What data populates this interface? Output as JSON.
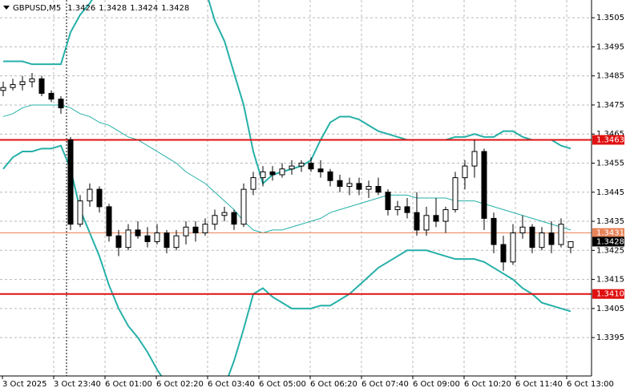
{
  "chart_data": {
    "type": "candlestick",
    "title": "GBPUSD,M5",
    "ylim": [
      1.33818,
      1.35111
    ],
    "yticks": [
      1.3395,
      1.3405,
      1.3415,
      1.3425,
      1.3435,
      1.3445,
      1.3455,
      1.3465,
      1.3475,
      1.3485,
      1.3495,
      1.3505
    ],
    "grid": true,
    "x_tick_labels": [
      "3 Oct 2025",
      "3 Oct 23:40",
      "6 Oct 01:00",
      "6 Oct 02:20",
      "6 Oct 03:40",
      "6 Oct 05:00",
      "6 Oct 06:20",
      "6 Oct 07:40",
      "6 Oct 09:00",
      "6 Oct 10:20",
      "6 Oct 11:40",
      "6 Oct 13:00"
    ],
    "candle_color": "#000000",
    "open": [
      1.348,
      1.3481,
      1.3482,
      1.3483,
      1.3484,
      1.3479,
      1.3477,
      1.3463,
      1.3434,
      1.3442,
      1.3446,
      1.344,
      1.343,
      1.3426,
      1.3432,
      1.343,
      1.3428,
      1.3431,
      1.3426,
      1.343,
      1.3433,
      1.3431,
      1.3434,
      1.3437,
      1.3438,
      1.3434,
      1.3446,
      1.345,
      1.3452,
      1.3451,
      1.3453,
      1.3454,
      1.3455,
      1.3453,
      1.3452,
      1.3449,
      1.3447,
      1.3448,
      1.3446,
      1.3447,
      1.3445,
      1.3439,
      1.344,
      1.3438,
      1.3432,
      1.3437,
      1.3435,
      1.3439,
      1.345,
      1.3454,
      1.3459,
      1.3436,
      1.3427,
      1.3421,
      1.3431,
      1.3433,
      1.3426,
      1.3431,
      1.3427,
      1.3426
    ],
    "high": [
      1.3483,
      1.3484,
      1.3485,
      1.3486,
      1.3485,
      1.348,
      1.3478,
      1.3464,
      1.3444,
      1.3448,
      1.3447,
      1.3441,
      1.3432,
      1.3434,
      1.3435,
      1.3433,
      1.3434,
      1.3432,
      1.3432,
      1.3435,
      1.3435,
      1.3436,
      1.3439,
      1.344,
      1.3439,
      1.3448,
      1.3452,
      1.3454,
      1.3454,
      1.3455,
      1.3456,
      1.3456,
      1.3457,
      1.3456,
      1.3453,
      1.3451,
      1.345,
      1.345,
      1.3449,
      1.345,
      1.3446,
      1.3442,
      1.3443,
      1.3445,
      1.344,
      1.3443,
      1.344,
      1.3452,
      1.3456,
      1.3463,
      1.346,
      1.3438,
      1.343,
      1.3434,
      1.3437,
      1.3434,
      1.3433,
      1.3435,
      1.3436,
      1.3428
    ],
    "low": [
      1.3478,
      1.348,
      1.348,
      1.3481,
      1.3478,
      1.3476,
      1.3472,
      1.3432,
      1.3433,
      1.344,
      1.3438,
      1.3428,
      1.3423,
      1.3425,
      1.3429,
      1.3426,
      1.3427,
      1.3424,
      1.3425,
      1.3427,
      1.3428,
      1.343,
      1.3432,
      1.3435,
      1.3432,
      1.3433,
      1.3444,
      1.3447,
      1.3449,
      1.345,
      1.3451,
      1.3452,
      1.3452,
      1.345,
      1.3447,
      1.3445,
      1.3444,
      1.3444,
      1.3443,
      1.3444,
      1.3437,
      1.3437,
      1.3436,
      1.343,
      1.343,
      1.3433,
      1.3431,
      1.3438,
      1.3446,
      1.345,
      1.3432,
      1.3424,
      1.3418,
      1.342,
      1.3429,
      1.3424,
      1.3425,
      1.3424,
      1.3426,
      1.3424
    ],
    "close": [
      1.3481,
      1.3482,
      1.3483,
      1.3484,
      1.3479,
      1.3477,
      1.3474,
      1.3434,
      1.3442,
      1.3446,
      1.344,
      1.343,
      1.3426,
      1.3432,
      1.343,
      1.3428,
      1.3431,
      1.3426,
      1.343,
      1.3433,
      1.3431,
      1.3434,
      1.3437,
      1.3438,
      1.3434,
      1.3446,
      1.345,
      1.3452,
      1.3451,
      1.3453,
      1.3454,
      1.3455,
      1.3453,
      1.3452,
      1.3449,
      1.3447,
      1.3448,
      1.3446,
      1.3447,
      1.3445,
      1.3439,
      1.344,
      1.3438,
      1.3432,
      1.3437,
      1.3435,
      1.3439,
      1.345,
      1.3454,
      1.3459,
      1.3436,
      1.3427,
      1.3421,
      1.3431,
      1.3433,
      1.3426,
      1.3431,
      1.3427,
      1.3434,
      1.3428
    ],
    "band_color": "#26b0a8",
    "upper": [
      1.349,
      1.349,
      1.349,
      1.3489,
      1.3489,
      1.3489,
      1.3489,
      1.35,
      1.3506,
      1.351,
      1.3515,
      1.352,
      1.3524,
      1.3527,
      1.3529,
      1.353,
      1.353,
      1.353,
      1.3529,
      1.3527,
      1.3524,
      1.3515,
      1.3504,
      1.3497,
      1.3486,
      1.3475,
      1.3459,
      1.3448,
      1.3451,
      1.3452,
      1.3453,
      1.3454,
      1.3456,
      1.3463,
      1.3469,
      1.3471,
      1.3471,
      1.347,
      1.3468,
      1.3466,
      1.3465,
      1.3464,
      1.3463,
      1.3463,
      1.3463,
      1.3463,
      1.3463,
      1.3464,
      1.3464,
      1.3465,
      1.3464,
      1.3464,
      1.3466,
      1.3466,
      1.3464,
      1.3463,
      1.3463,
      1.3463,
      1.3461,
      1.346
    ],
    "middle": [
      1.3471,
      1.3472,
      1.3474,
      1.3475,
      1.3475,
      1.3475,
      1.3475,
      1.3474,
      1.3472,
      1.3471,
      1.3469,
      1.3468,
      1.3466,
      1.3464,
      1.3463,
      1.3461,
      1.3459,
      1.3457,
      1.3455,
      1.3452,
      1.345,
      1.3448,
      1.3445,
      1.3442,
      1.3439,
      1.3435,
      1.3432,
      1.3431,
      1.3432,
      1.3432,
      1.3433,
      1.3434,
      1.3435,
      1.3436,
      1.3438,
      1.3439,
      1.344,
      1.3441,
      1.3442,
      1.3443,
      1.3444,
      1.3444,
      1.3444,
      1.3443,
      1.3443,
      1.3443,
      1.3443,
      1.3442,
      1.3442,
      1.3442,
      1.3441,
      1.344,
      1.3439,
      1.3438,
      1.3437,
      1.3436,
      1.3435,
      1.3434,
      1.3433,
      1.3432
    ],
    "lower": [
      1.3453,
      1.3457,
      1.3459,
      1.3459,
      1.346,
      1.346,
      1.3461,
      1.3453,
      1.3439,
      1.3431,
      1.3423,
      1.3413,
      1.3405,
      1.3399,
      1.3395,
      1.339,
      1.3384,
      1.3379,
      1.3375,
      1.3372,
      1.337,
      1.337,
      1.3373,
      1.3378,
      1.3387,
      1.3398,
      1.341,
      1.3412,
      1.3409,
      1.3407,
      1.3405,
      1.3405,
      1.3405,
      1.3406,
      1.3406,
      1.3408,
      1.341,
      1.3413,
      1.3416,
      1.3419,
      1.3421,
      1.3423,
      1.3425,
      1.3425,
      1.3425,
      1.3424,
      1.3423,
      1.3422,
      1.3422,
      1.3422,
      1.3421,
      1.3419,
      1.3417,
      1.3415,
      1.3412,
      1.341,
      1.3407,
      1.3406,
      1.3405,
      1.3404
    ],
    "levels": [
      {
        "value": 1.3463,
        "color": "#e01010"
      },
      {
        "value": 1.3431,
        "color": "#e8845a"
      },
      {
        "value": {
          "value": 1.341,
          "label": "1.3410"
        },
        "color": "#e01010"
      }
    ],
    "current_color": "#000000"
  }
}
